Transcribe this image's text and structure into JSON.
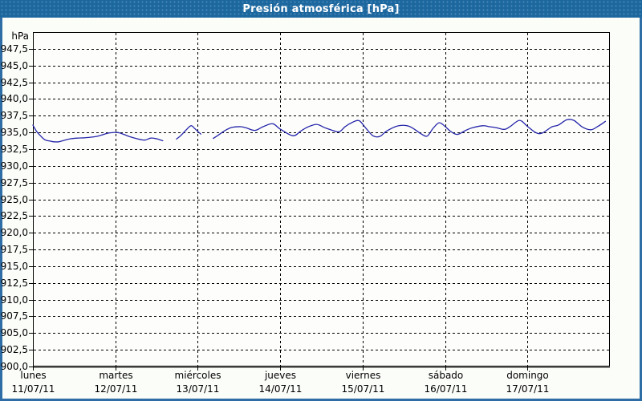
{
  "title_bar": {
    "title": "Presión atmosférica [hPa]"
  },
  "colors": {
    "title_bar_bg": "#1d679f",
    "title_text": "#ffffff",
    "frame_border": "#2e6da5",
    "page_bg": "#fbfdf9",
    "plot_bg": "#fdfefb",
    "axis": "#000000",
    "grid": "#000000",
    "series_line": "#2525aa",
    "label_text": "#000000"
  },
  "y_axis": {
    "unit": "hPa",
    "tick_labels": [
      "947,5",
      "945,0",
      "942,5",
      "940,0",
      "937,5",
      "935,0",
      "932,5",
      "930,0",
      "927,5",
      "925,0",
      "922,5",
      "920,0",
      "917,5",
      "915,0",
      "912,5",
      "910,0",
      "907,5",
      "905,0",
      "902,5",
      "900,0"
    ],
    "tick_values": [
      947.5,
      945.0,
      942.5,
      940.0,
      937.5,
      935.0,
      932.5,
      930.0,
      927.5,
      925.0,
      922.5,
      920.0,
      917.5,
      915.0,
      912.5,
      910.0,
      907.5,
      905.0,
      902.5,
      900.0
    ]
  },
  "x_axis": {
    "days": [
      {
        "name": "lunes",
        "date": "11/07/11"
      },
      {
        "name": "martes",
        "date": "12/07/11"
      },
      {
        "name": "miércoles",
        "date": "13/07/11"
      },
      {
        "name": "jueves",
        "date": "14/07/11"
      },
      {
        "name": "viernes",
        "date": "15/07/11"
      },
      {
        "name": "sábado",
        "date": "16/07/11"
      },
      {
        "name": "domingo",
        "date": "17/07/11"
      }
    ]
  },
  "chart_data": {
    "type": "line",
    "title": "Presión atmosférica [hPa]",
    "ylabel": "hPa",
    "ylim": [
      900,
      950
    ],
    "grid": "dashed",
    "legend": "none",
    "x_unit": "hours since lunes 11/07/11 00:00",
    "x_range": [
      0,
      168
    ],
    "data_gaps_hours": [
      [
        37.8,
        41.8
      ],
      [
        48.9,
        52.5
      ]
    ],
    "series": [
      {
        "name": "Presión atmosférica",
        "color": "#2525aa",
        "segments": [
          [
            [
              0,
              936.1
            ],
            [
              1,
              935.2
            ],
            [
              2,
              934.6
            ],
            [
              3.5,
              933.9
            ],
            [
              5,
              933.7
            ],
            [
              6,
              933.6
            ],
            [
              7.5,
              933.6
            ],
            [
              9,
              933.8
            ],
            [
              11,
              934.05
            ],
            [
              13,
              934.15
            ],
            [
              15,
              934.2
            ],
            [
              18,
              934.35
            ],
            [
              20,
              934.6
            ],
            [
              22,
              934.9
            ],
            [
              24,
              935.0
            ],
            [
              25,
              934.95
            ],
            [
              26.5,
              934.7
            ],
            [
              28,
              934.4
            ],
            [
              30,
              934.1
            ],
            [
              32.5,
              933.85
            ],
            [
              34.3,
              934.15
            ],
            [
              36,
              934.05
            ],
            [
              37.8,
              933.75
            ]
          ],
          [
            [
              41.8,
              934.0
            ],
            [
              43,
              934.5
            ],
            [
              44.5,
              935.3
            ],
            [
              46,
              936.0
            ],
            [
              47,
              935.65
            ],
            [
              48,
              935.15
            ],
            [
              48.9,
              934.75
            ]
          ],
          [
            [
              52.5,
              934.1
            ],
            [
              54,
              934.6
            ],
            [
              56,
              935.3
            ],
            [
              58,
              935.75
            ],
            [
              60.5,
              935.85
            ],
            [
              62,
              935.7
            ],
            [
              64.6,
              935.3
            ],
            [
              67,
              935.85
            ],
            [
              69.8,
              936.3
            ],
            [
              72,
              935.5
            ],
            [
              75.7,
              934.5
            ],
            [
              78,
              935.2
            ],
            [
              80,
              935.8
            ],
            [
              82.6,
              936.2
            ],
            [
              85,
              935.7
            ],
            [
              87,
              935.35
            ],
            [
              89.2,
              935.1
            ],
            [
              91,
              935.9
            ],
            [
              93,
              936.5
            ],
            [
              95,
              936.75
            ],
            [
              97,
              935.6
            ],
            [
              99,
              934.5
            ],
            [
              101,
              934.4
            ],
            [
              103,
              935.2
            ],
            [
              106,
              935.95
            ],
            [
              109,
              936.0
            ],
            [
              111,
              935.5
            ],
            [
              113,
              934.8
            ],
            [
              114.8,
              934.45
            ],
            [
              116.5,
              935.6
            ],
            [
              118.3,
              936.45
            ],
            [
              120,
              935.9
            ],
            [
              121.5,
              935.2
            ],
            [
              123.5,
              934.7
            ],
            [
              126,
              935.3
            ],
            [
              128,
              935.7
            ],
            [
              131,
              936.0
            ],
            [
              133,
              935.85
            ],
            [
              135,
              935.7
            ],
            [
              137.3,
              935.45
            ],
            [
              139,
              935.9
            ],
            [
              141.7,
              936.8
            ],
            [
              144,
              935.9
            ],
            [
              146.5,
              934.95
            ],
            [
              148.3,
              934.9
            ],
            [
              151,
              935.8
            ],
            [
              153,
              936.1
            ],
            [
              155.5,
              936.9
            ],
            [
              157.5,
              936.8
            ],
            [
              160,
              935.8
            ],
            [
              162.5,
              935.4
            ],
            [
              164.5,
              935.9
            ],
            [
              166.7,
              936.65
            ]
          ]
        ]
      }
    ]
  }
}
